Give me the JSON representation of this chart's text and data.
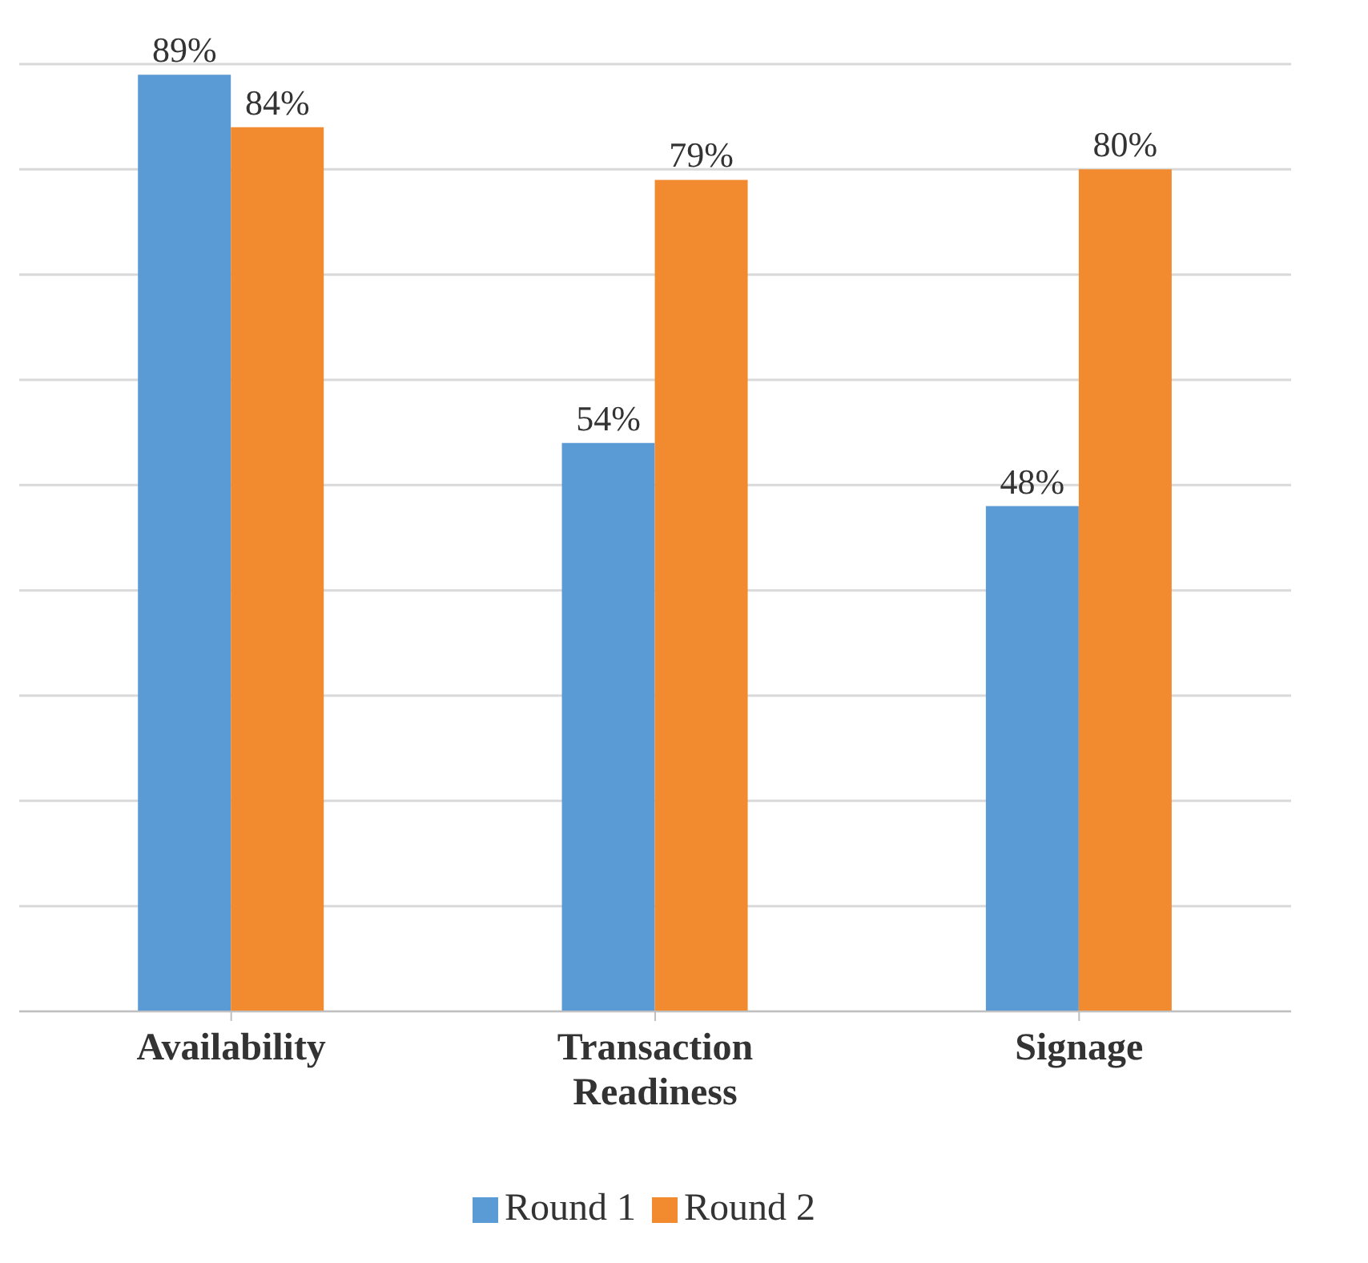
{
  "chart_data": {
    "type": "bar",
    "categories": [
      "Availability",
      "Transaction Readiness",
      "Signage"
    ],
    "series": [
      {
        "name": "Round 1",
        "color": "#5b9bd5",
        "values": [
          89,
          54,
          48
        ],
        "value_labels": [
          "89%",
          "54%",
          "48%"
        ]
      },
      {
        "name": "Round 2",
        "color": "#f28a30",
        "values": [
          84,
          79,
          80
        ],
        "value_labels": [
          "84%",
          "79%",
          "80%"
        ]
      }
    ],
    "ylim": [
      0,
      90
    ],
    "grid": "y",
    "tick_labels": "x",
    "legend": "bottom"
  }
}
